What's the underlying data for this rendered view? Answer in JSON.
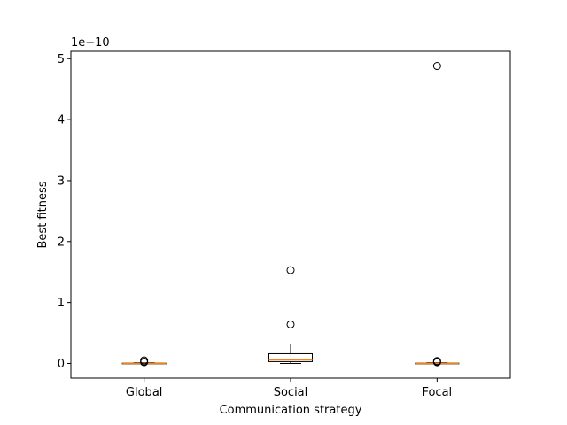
{
  "chart_data": {
    "type": "boxplot",
    "title": "",
    "xlabel": "Communication strategy",
    "ylabel": "Best fitness",
    "y_multiplier_label": "1e−10",
    "y_scale_exponent": -10,
    "ylim": [
      -0.24,
      5.12
    ],
    "yticks": [
      0,
      1,
      2,
      3,
      4,
      5
    ],
    "ytick_labels": [
      "0",
      "1",
      "2",
      "3",
      "4",
      "5"
    ],
    "categories": [
      "Global",
      "Social",
      "Focal"
    ],
    "series": [
      {
        "category": "Global",
        "whisker_low": 0.0,
        "q1": 0.0,
        "median": 0.0,
        "q3": 0.005,
        "whisker_high": 0.01,
        "outliers": [
          0.02,
          0.03,
          0.05
        ]
      },
      {
        "category": "Social",
        "whisker_low": 0.0,
        "q1": 0.03,
        "median": 0.06,
        "q3": 0.16,
        "whisker_high": 0.32,
        "outliers": [
          0.64,
          1.53
        ]
      },
      {
        "category": "Focal",
        "whisker_low": 0.0,
        "q1": 0.0,
        "median": 0.0,
        "q3": 0.005,
        "whisker_high": 0.01,
        "outliers": [
          0.02,
          0.03,
          0.04,
          4.88
        ]
      }
    ],
    "colors": {
      "box": "#000000",
      "median": "#ff7f0e",
      "outlier": "#000000"
    },
    "grid": false,
    "legend": "none"
  }
}
